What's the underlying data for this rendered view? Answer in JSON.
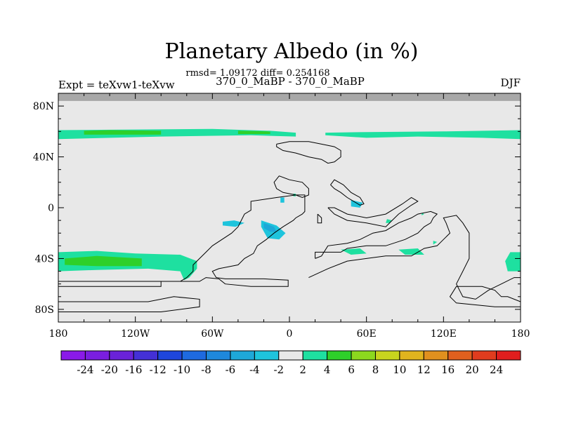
{
  "chart_data": {
    "type": "heatmap",
    "title": "Planetary Albedo (in %)",
    "stats": "rmsd= 1.09172 diff= 0.254168",
    "left_label": "Expt = teXvw1-teXvw",
    "center_label": "370_0_MaBP - 370_0_MaBP",
    "right_label": "DJF",
    "xlim": [
      -180,
      180
    ],
    "ylim": [
      -90,
      90
    ],
    "x_ticks": [
      {
        "value": -180,
        "label": "180"
      },
      {
        "value": -120,
        "label": "120W"
      },
      {
        "value": -60,
        "label": "60W"
      },
      {
        "value": 0,
        "label": "0"
      },
      {
        "value": 60,
        "label": "60E"
      },
      {
        "value": 120,
        "label": "120E"
      },
      {
        "value": 180,
        "label": "180"
      }
    ],
    "y_ticks": [
      {
        "value": 80,
        "label": "80N"
      },
      {
        "value": 40,
        "label": "40N"
      },
      {
        "value": 0,
        "label": "0"
      },
      {
        "value": -40,
        "label": "40S"
      },
      {
        "value": -80,
        "label": "80S"
      }
    ],
    "colorbar": {
      "labels": [
        "-24",
        "-20",
        "-16",
        "-12",
        "-10",
        "-8",
        "-6",
        "-4",
        "-2",
        "2",
        "4",
        "6",
        "8",
        "10",
        "12",
        "16",
        "20",
        "24"
      ],
      "colors": [
        "#8a1ae8",
        "#7a1ee0",
        "#6a22d8",
        "#4430d6",
        "#1e46dc",
        "#1e6ae0",
        "#1e88dc",
        "#1ea8d8",
        "#1ec4dc",
        "#e8e8e8",
        "#1ee0a0",
        "#2ed02a",
        "#8cd81e",
        "#c8d41e",
        "#e0b41e",
        "#e0901e",
        "#e0601e",
        "#e03c1e",
        "#e01e1e"
      ]
    },
    "background_color": "#e8e8e8",
    "missing_color": "#a8a8a8",
    "regions": [
      {
        "level": "2 to 4",
        "color": "#1ee0a0",
        "points": [
          [
            -180,
            61
          ],
          [
            -120,
            61.5
          ],
          [
            -60,
            62
          ],
          [
            -15,
            60.5
          ],
          [
            5,
            59
          ],
          [
            5,
            56
          ],
          [
            -30,
            57
          ],
          [
            -100,
            56
          ],
          [
            -180,
            54
          ]
        ]
      },
      {
        "level": "2 to 4",
        "color": "#1ee0a0",
        "points": [
          [
            28,
            59
          ],
          [
            60,
            59.5
          ],
          [
            120,
            60
          ],
          [
            180,
            61
          ],
          [
            180,
            54
          ],
          [
            150,
            55
          ],
          [
            100,
            56
          ],
          [
            60,
            55
          ],
          [
            28,
            57
          ]
        ]
      },
      {
        "level": "4 to 6",
        "color": "#2ed02a",
        "points": [
          [
            -160,
            60.5
          ],
          [
            -140,
            61
          ],
          [
            -100,
            60.5
          ],
          [
            -100,
            57.5
          ],
          [
            -160,
            57.5
          ]
        ]
      },
      {
        "level": "4 to 6",
        "color": "#2ed02a",
        "points": [
          [
            -40,
            60.5
          ],
          [
            -15,
            60
          ],
          [
            -15,
            58
          ],
          [
            -40,
            58
          ]
        ]
      },
      {
        "level": "2 to 4",
        "color": "#1ee0a0",
        "points": [
          [
            -180,
            -35
          ],
          [
            -150,
            -34
          ],
          [
            -120,
            -36
          ],
          [
            -85,
            -37
          ],
          [
            -72,
            -42
          ],
          [
            -72,
            -48
          ],
          [
            -78,
            -55
          ],
          [
            -82,
            -57
          ],
          [
            -85,
            -50
          ],
          [
            -110,
            -48
          ],
          [
            -150,
            -49
          ],
          [
            -180,
            -50
          ]
        ]
      },
      {
        "level": "4 to 6",
        "color": "#2ed02a",
        "points": [
          [
            -175,
            -40
          ],
          [
            -150,
            -38
          ],
          [
            -115,
            -40
          ],
          [
            -115,
            -46
          ],
          [
            -150,
            -46
          ],
          [
            -175,
            -45
          ]
        ]
      },
      {
        "level": "2 to 4",
        "color": "#1ee0a0",
        "points": [
          [
            172,
            -35
          ],
          [
            180,
            -35
          ],
          [
            180,
            -50
          ],
          [
            170,
            -50
          ],
          [
            168,
            -42
          ]
        ]
      },
      {
        "level": "2 to 4",
        "color": "#1ee0a0",
        "points": [
          [
            40,
            -33
          ],
          [
            55,
            -32
          ],
          [
            60,
            -36
          ],
          [
            48,
            -37
          ]
        ]
      },
      {
        "level": "2 to 4",
        "color": "#1ee0a0",
        "points": [
          [
            85,
            -33
          ],
          [
            100,
            -32
          ],
          [
            105,
            -37
          ],
          [
            90,
            -37
          ]
        ]
      },
      {
        "level": "2 to 4",
        "color": "#1ee0a0",
        "points": [
          [
            76,
            -9
          ],
          [
            80,
            -10
          ],
          [
            78,
            -12
          ],
          [
            75,
            -12
          ]
        ]
      },
      {
        "level": "2 to 4",
        "color": "#1ee0a0",
        "points": [
          [
            112,
            -26
          ],
          [
            115,
            -27
          ],
          [
            112,
            -29
          ]
        ]
      },
      {
        "level": "2 to 4",
        "color": "#1ee0a0",
        "points": [
          [
            103,
            -4
          ],
          [
            105,
            -5
          ],
          [
            103,
            -6
          ]
        ]
      },
      {
        "level": "2 to 4",
        "color": "#1ee0a0",
        "points": [
          [
            3,
            11
          ],
          [
            5,
            11
          ],
          [
            5,
            9
          ],
          [
            3,
            9
          ]
        ]
      },
      {
        "level": "-4 to -2",
        "color": "#1ec4dc",
        "points": [
          [
            -52,
            -11
          ],
          [
            -43,
            -10
          ],
          [
            -35,
            -12
          ],
          [
            -42,
            -15
          ],
          [
            -52,
            -14
          ]
        ]
      },
      {
        "level": "-4 to -2",
        "color": "#1ec4dc",
        "points": [
          [
            -22,
            -10
          ],
          [
            -10,
            -14
          ],
          [
            -3,
            -20
          ],
          [
            -8,
            -25
          ],
          [
            -17,
            -24
          ],
          [
            -22,
            -15
          ]
        ]
      },
      {
        "level": "-6 to -4",
        "color": "#1ea8d8",
        "points": [
          [
            -20,
            -12
          ],
          [
            -12,
            -15
          ],
          [
            -10,
            -19
          ],
          [
            -15,
            -19
          ],
          [
            -20,
            -16
          ]
        ]
      },
      {
        "level": "-4 to -2",
        "color": "#1ec4dc",
        "points": [
          [
            -7,
            8
          ],
          [
            -4,
            8
          ],
          [
            -4,
            4
          ],
          [
            -7,
            4
          ]
        ]
      },
      {
        "level": "-4 to -2",
        "color": "#1ec4dc",
        "points": [
          [
            48,
            6
          ],
          [
            57,
            4
          ],
          [
            55,
            0
          ],
          [
            48,
            1
          ]
        ]
      }
    ],
    "coastlines": [
      [
        [
          -180,
          -62
        ],
        [
          -100,
          -62
        ],
        [
          -100,
          -58
        ],
        [
          -80,
          -58
        ],
        [
          -70,
          -58
        ],
        [
          -65,
          -55
        ],
        [
          -55,
          -56
        ],
        [
          -50,
          -60
        ],
        [
          -30,
          -62
        ],
        [
          -10,
          -62
        ],
        [
          -1,
          -62
        ],
        [
          -1,
          -57
        ],
        [
          -20,
          -56
        ],
        [
          -50,
          -56
        ],
        [
          -57,
          -55
        ],
        [
          -60,
          -50
        ],
        [
          -55,
          -48
        ],
        [
          -40,
          -45
        ],
        [
          -35,
          -40
        ],
        [
          -28,
          -36
        ],
        [
          -25,
          -30
        ],
        [
          -18,
          -25
        ],
        [
          -12,
          -20
        ],
        [
          -5,
          -15
        ],
        [
          3,
          -10
        ],
        [
          5,
          -8
        ],
        [
          10,
          -5
        ],
        [
          12,
          -3
        ],
        [
          12,
          10
        ],
        [
          5,
          10
        ],
        [
          -10,
          8
        ],
        [
          -30,
          5
        ],
        [
          -30,
          -2
        ],
        [
          -35,
          -5
        ],
        [
          -40,
          -15
        ],
        [
          -45,
          -20
        ],
        [
          -60,
          -30
        ],
        [
          -65,
          -35
        ],
        [
          -70,
          -40
        ],
        [
          -75,
          -45
        ],
        [
          -75,
          -50
        ],
        [
          -80,
          -55
        ],
        [
          -85,
          -58
        ],
        [
          -180,
          -58
        ]
      ],
      [
        [
          -180,
          -74
        ],
        [
          -110,
          -74
        ],
        [
          -90,
          -70
        ],
        [
          -70,
          -72
        ],
        [
          -70,
          -78
        ],
        [
          -100,
          -82
        ],
        [
          -180,
          -82
        ]
      ],
      [
        [
          -180,
          -90
        ],
        [
          180,
          -90
        ]
      ],
      [
        [
          180,
          -74
        ],
        [
          170,
          -70
        ],
        [
          165,
          -70
        ],
        [
          160,
          -65
        ],
        [
          150,
          -62
        ],
        [
          130,
          -62
        ],
        [
          125,
          -70
        ],
        [
          130,
          -75
        ],
        [
          160,
          -78
        ],
        [
          180,
          -78
        ]
      ],
      [
        [
          15,
          -55
        ],
        [
          30,
          -48
        ],
        [
          45,
          -42
        ],
        [
          60,
          -40
        ],
        [
          75,
          -38
        ],
        [
          95,
          -38
        ],
        [
          105,
          -32
        ],
        [
          115,
          -30
        ],
        [
          120,
          -25
        ],
        [
          125,
          -20
        ],
        [
          122,
          -12
        ],
        [
          120,
          -8
        ],
        [
          130,
          -6
        ],
        [
          135,
          -12
        ],
        [
          140,
          -20
        ],
        [
          140,
          -40
        ],
        [
          135,
          -50
        ],
        [
          130,
          -60
        ],
        [
          135,
          -70
        ],
        [
          145,
          -72
        ],
        [
          155,
          -65
        ],
        [
          165,
          -60
        ],
        [
          175,
          -55
        ],
        [
          180,
          -55
        ]
      ],
      [
        [
          20,
          -40
        ],
        [
          20,
          -35
        ],
        [
          40,
          -35
        ],
        [
          45,
          -32
        ],
        [
          60,
          -30
        ],
        [
          75,
          -30
        ],
        [
          90,
          -25
        ],
        [
          100,
          -20
        ],
        [
          105,
          -15
        ],
        [
          110,
          -12
        ],
        [
          112,
          -8
        ],
        [
          115,
          -5
        ],
        [
          110,
          -3
        ],
        [
          100,
          -5
        ],
        [
          95,
          -8
        ],
        [
          85,
          -12
        ],
        [
          75,
          -18
        ],
        [
          65,
          -20
        ],
        [
          55,
          -25
        ],
        [
          45,
          -28
        ],
        [
          30,
          -30
        ],
        [
          25,
          -38
        ],
        [
          20,
          -40
        ]
      ],
      [
        [
          30,
          0
        ],
        [
          35,
          -5
        ],
        [
          45,
          -10
        ],
        [
          60,
          -12
        ],
        [
          75,
          -15
        ],
        [
          80,
          -10
        ],
        [
          85,
          -5
        ],
        [
          95,
          2
        ],
        [
          100,
          5
        ],
        [
          95,
          8
        ],
        [
          88,
          3
        ],
        [
          75,
          -5
        ],
        [
          60,
          -8
        ],
        [
          45,
          -5
        ],
        [
          35,
          0
        ],
        [
          30,
          0
        ]
      ],
      [
        [
          32,
          18
        ],
        [
          35,
          15
        ],
        [
          40,
          12
        ],
        [
          45,
          8
        ],
        [
          50,
          5
        ],
        [
          55,
          2
        ],
        [
          58,
          3
        ],
        [
          55,
          8
        ],
        [
          48,
          12
        ],
        [
          42,
          18
        ],
        [
          35,
          22
        ],
        [
          32,
          18
        ]
      ],
      [
        [
          -10,
          50
        ],
        [
          -10,
          48
        ],
        [
          -5,
          45
        ],
        [
          5,
          43
        ],
        [
          15,
          40
        ],
        [
          25,
          38
        ],
        [
          30,
          35
        ],
        [
          35,
          36
        ],
        [
          40,
          40
        ],
        [
          40,
          45
        ],
        [
          35,
          48
        ],
        [
          25,
          50
        ],
        [
          15,
          52
        ],
        [
          0,
          52
        ],
        [
          -10,
          50
        ]
      ],
      [
        [
          -8,
          25
        ],
        [
          0,
          22
        ],
        [
          10,
          20
        ],
        [
          15,
          15
        ],
        [
          15,
          10
        ],
        [
          10,
          8
        ],
        [
          5,
          10
        ],
        [
          -5,
          12
        ],
        [
          -10,
          15
        ],
        [
          -12,
          20
        ],
        [
          -8,
          25
        ]
      ],
      [
        [
          22,
          -5
        ],
        [
          25,
          -8
        ],
        [
          25,
          -12
        ],
        [
          22,
          -12
        ],
        [
          22,
          -5
        ]
      ]
    ]
  }
}
